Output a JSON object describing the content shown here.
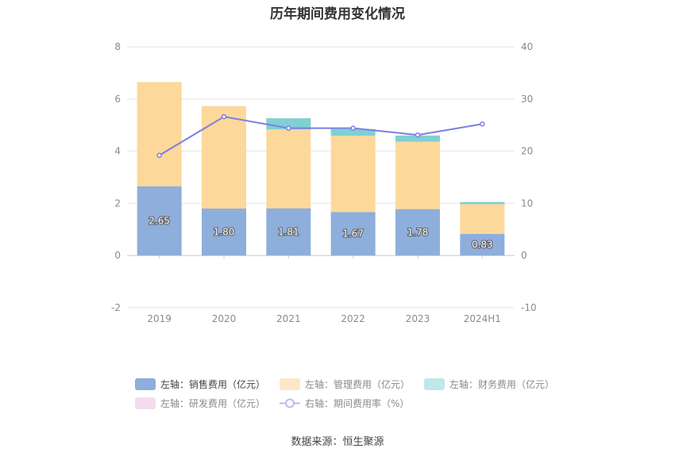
{
  "chart_data": {
    "type": "bar",
    "title": "历年期间费用变化情况",
    "categories": [
      "2019",
      "2020",
      "2021",
      "2022",
      "2023",
      "2024H1"
    ],
    "y_left": {
      "ylim": [
        -2,
        8
      ],
      "ticks": [
        "-2",
        "0",
        "2",
        "4",
        "6",
        "8"
      ]
    },
    "y_right": {
      "ylim": [
        -10,
        40
      ],
      "ticks": [
        "-10",
        "0",
        "10",
        "20",
        "30",
        "40"
      ]
    },
    "grid": true,
    "legend_position": "bottom",
    "series": [
      {
        "name": "左轴：销售费用（亿元）",
        "axis": "left",
        "kind": "stacked-bar",
        "color": "#8eaedb",
        "values": [
          2.65,
          1.8,
          1.81,
          1.67,
          1.78,
          0.83
        ],
        "labels": [
          "2.65",
          "1.80",
          "1.81",
          "1.67",
          "1.78",
          "0.83"
        ]
      },
      {
        "name": "左轴：管理费用（亿元）",
        "axis": "left",
        "kind": "stacked-bar",
        "color": "#fdd89b",
        "values": [
          4.0,
          3.93,
          3.02,
          2.92,
          2.58,
          1.14
        ]
      },
      {
        "name": "左轴：财务费用（亿元）",
        "axis": "left",
        "kind": "stacked-bar",
        "color": "#7fd0d4",
        "values": [
          0,
          0,
          0.43,
          0.26,
          0.24,
          0.08
        ]
      },
      {
        "name": "左轴：研发费用（亿元）",
        "axis": "left",
        "kind": "stacked-bar",
        "color": "#f3d3ea",
        "values": [
          0,
          0,
          0,
          0,
          0,
          0
        ]
      },
      {
        "name": "右轴：期间费用率（%）",
        "axis": "right",
        "kind": "line",
        "color": "#7b7fe0",
        "values": [
          19.2,
          26.6,
          24.4,
          24.4,
          23.1,
          25.2
        ]
      }
    ],
    "source": "数据来源：恒生聚源"
  }
}
